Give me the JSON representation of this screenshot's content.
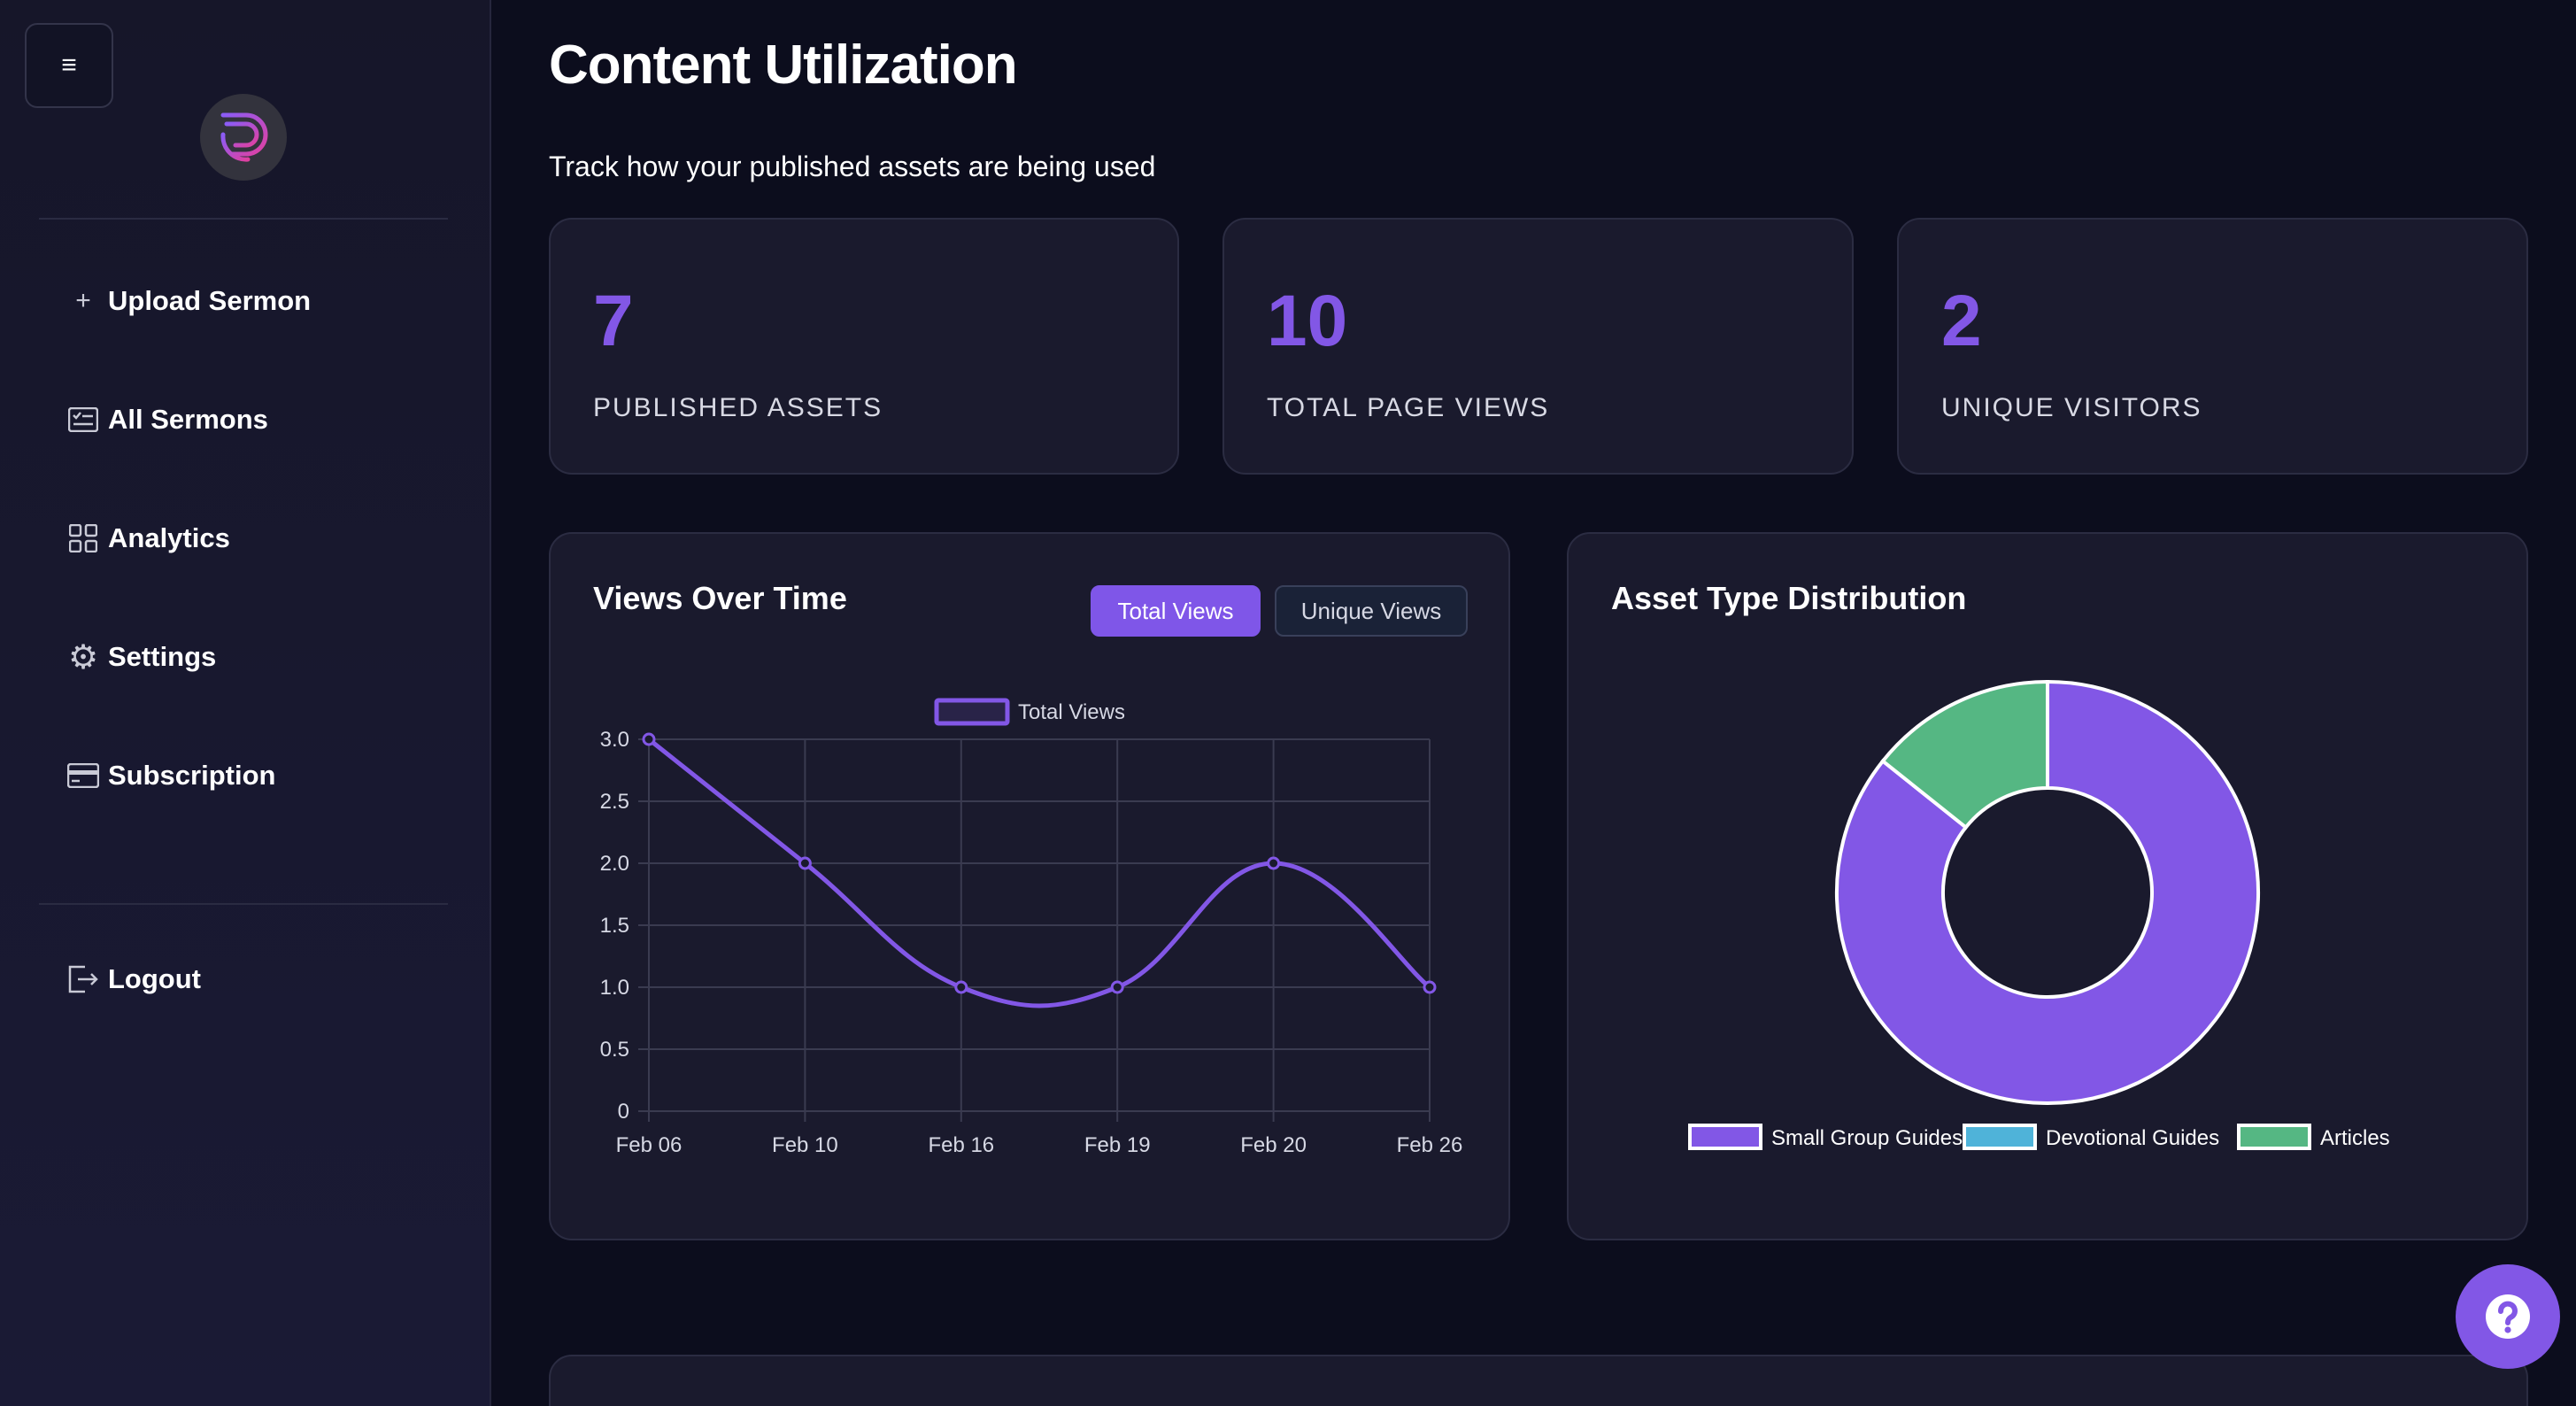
{
  "sidebar": {
    "menu_icon": "hamburger-icon",
    "logo_icon": "brand-logo",
    "items": [
      {
        "label": "Upload Sermon",
        "icon": "plus-icon"
      },
      {
        "label": "All Sermons",
        "icon": "list-card-icon"
      },
      {
        "label": "Analytics",
        "icon": "grid-icon"
      },
      {
        "label": "Settings",
        "icon": "gear-icon"
      },
      {
        "label": "Subscription",
        "icon": "credit-card-icon"
      }
    ],
    "logout": {
      "label": "Logout",
      "icon": "logout-icon"
    }
  },
  "header": {
    "title": "Content Utilization",
    "subtitle": "Track how your published assets are being used"
  },
  "stats": [
    {
      "value": "7",
      "label": "PUBLISHED ASSETS"
    },
    {
      "value": "10",
      "label": "TOTAL PAGE VIEWS"
    },
    {
      "value": "2",
      "label": "UNIQUE VISITORS"
    }
  ],
  "views_card": {
    "title": "Views Over Time",
    "toggle_total": "Total Views",
    "toggle_unique": "Unique Views"
  },
  "distribution_card": {
    "title": "Asset Type Distribution"
  },
  "colors": {
    "accent": "#8257e6",
    "cyan": "#4fb3d9",
    "green": "#55b783",
    "background": "#0c0d1d",
    "card": "#1a1a2d"
  },
  "help_icon": "question-icon",
  "chart_data": [
    {
      "type": "line",
      "legend": [
        "Total Views"
      ],
      "legend_position": "top-center",
      "categories": [
        "Feb 06",
        "Feb 10",
        "Feb 16",
        "Feb 19",
        "Feb 20",
        "Feb 26"
      ],
      "series": [
        {
          "name": "Total Views",
          "values": [
            3,
            2,
            1,
            1,
            2,
            1
          ],
          "color": "#8257e6"
        }
      ],
      "ylim": [
        0,
        3
      ],
      "yticks": [
        "0",
        "0.5",
        "1.0",
        "1.5",
        "2.0",
        "2.5",
        "3.0"
      ],
      "grid": true
    },
    {
      "type": "pie",
      "donut": true,
      "legend_position": "bottom",
      "labels": [
        "Small Group Guides",
        "Devotional Guides",
        "Articles"
      ],
      "values": [
        6,
        0,
        1
      ],
      "colors": [
        "#8257e6",
        "#4fb3d9",
        "#55b783"
      ]
    }
  ]
}
